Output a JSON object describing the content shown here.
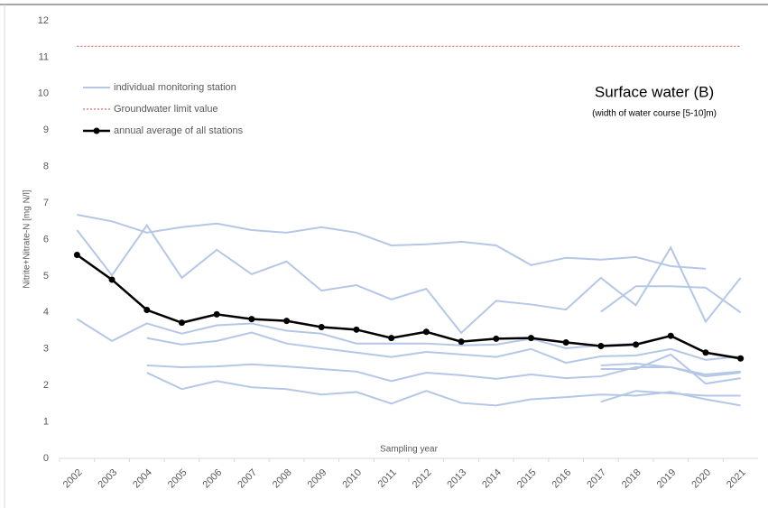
{
  "chart_data": {
    "type": "line",
    "title": "Surface water (B)",
    "subtitle": "(width of water course [5-10]m)",
    "x_label": "Sampling year",
    "y_label": "Nitrite+Nitrate-N [mg N/l]",
    "categories": [
      "2002",
      "2003",
      "2004",
      "2005",
      "2006",
      "2007",
      "2008",
      "2009",
      "2010",
      "2011",
      "2012",
      "2013",
      "2014",
      "2015",
      "2016",
      "2017",
      "2018",
      "2019",
      "2020",
      "2021"
    ],
    "ylim": [
      0,
      12
    ],
    "yticks": [
      0,
      1,
      2,
      3,
      4,
      5,
      6,
      7,
      8,
      9,
      10,
      11,
      12
    ],
    "grid": false,
    "series": [
      {
        "name": "individual monitoring station",
        "color": "#b4c7e7",
        "values": [
          6.68,
          6.5,
          6.19,
          6.34,
          6.44,
          6.26,
          6.19,
          6.34,
          6.19,
          5.84,
          5.87,
          5.94,
          5.84,
          5.3,
          5.5,
          5.45,
          5.52,
          5.27,
          5.2,
          null
        ]
      },
      {
        "color": "#b4c7e7",
        "values": [
          6.26,
          5.02,
          6.39,
          4.95,
          5.72,
          5.05,
          5.4,
          4.6,
          4.75,
          4.36,
          4.65,
          3.44,
          4.32,
          4.22,
          4.08,
          4.95,
          4.2,
          5.78,
          3.75,
          4.95
        ]
      },
      {
        "color": "#b4c7e7",
        "values": [
          null,
          null,
          null,
          null,
          null,
          null,
          null,
          null,
          null,
          null,
          null,
          null,
          null,
          null,
          null,
          4.02,
          4.72,
          4.72,
          4.68,
          4.0
        ]
      },
      {
        "color": "#b4c7e7",
        "values": [
          3.82,
          3.22,
          3.7,
          3.42,
          3.65,
          3.7,
          3.5,
          3.42,
          3.15,
          3.15,
          3.15,
          3.1,
          3.12,
          3.28,
          3.02,
          3.1,
          3.15,
          3.35,
          2.9,
          2.72
        ]
      },
      {
        "color": "#b4c7e7",
        "values": [
          null,
          null,
          3.3,
          3.12,
          3.22,
          3.45,
          3.15,
          3.02,
          2.9,
          2.78,
          2.92,
          2.85,
          2.78,
          3.0,
          2.62,
          2.8,
          2.82,
          3.0,
          2.7,
          2.8
        ]
      },
      {
        "color": "#b4c7e7",
        "values": [
          null,
          null,
          2.55,
          2.5,
          2.52,
          2.58,
          2.52,
          2.45,
          2.38,
          2.12,
          2.35,
          2.28,
          2.18,
          2.3,
          2.2,
          2.25,
          2.5,
          2.5,
          2.25,
          2.35
        ]
      },
      {
        "color": "#b4c7e7",
        "values": [
          null,
          null,
          2.35,
          1.9,
          2.12,
          1.95,
          1.9,
          1.75,
          1.82,
          1.5,
          1.85,
          1.52,
          1.45,
          1.62,
          1.68,
          1.75,
          1.72,
          1.82,
          1.62,
          1.45
        ]
      },
      {
        "color": "#b4c7e7",
        "values": [
          null,
          null,
          null,
          null,
          null,
          null,
          null,
          null,
          null,
          null,
          null,
          null,
          null,
          null,
          null,
          1.55,
          1.85,
          1.78,
          1.72,
          1.72
        ]
      },
      {
        "color": "#b4c7e7",
        "values": [
          null,
          null,
          null,
          null,
          null,
          null,
          null,
          null,
          null,
          null,
          null,
          null,
          null,
          null,
          null,
          2.45,
          2.45,
          2.85,
          2.05,
          2.2
        ]
      },
      {
        "color": "#b4c7e7",
        "values": [
          null,
          null,
          null,
          null,
          null,
          null,
          null,
          null,
          null,
          null,
          null,
          null,
          null,
          null,
          null,
          2.55,
          2.6,
          2.5,
          2.3,
          2.38
        ]
      },
      {
        "name": "Groundwater limit value",
        "color": "#e06666",
        "dashed": true,
        "values": [
          11.3,
          11.3,
          11.3,
          11.3,
          11.3,
          11.3,
          11.3,
          11.3,
          11.3,
          11.3,
          11.3,
          11.3,
          11.3,
          11.3,
          11.3,
          11.3,
          11.3,
          11.3,
          11.3,
          11.3
        ]
      },
      {
        "name": "annual average of all stations",
        "color": "#000000",
        "markers": true,
        "values": [
          5.58,
          4.9,
          4.07,
          3.72,
          3.95,
          3.82,
          3.77,
          3.6,
          3.53,
          3.3,
          3.47,
          3.2,
          3.28,
          3.3,
          3.18,
          3.08,
          3.12,
          3.36,
          2.9,
          2.74
        ]
      }
    ]
  }
}
